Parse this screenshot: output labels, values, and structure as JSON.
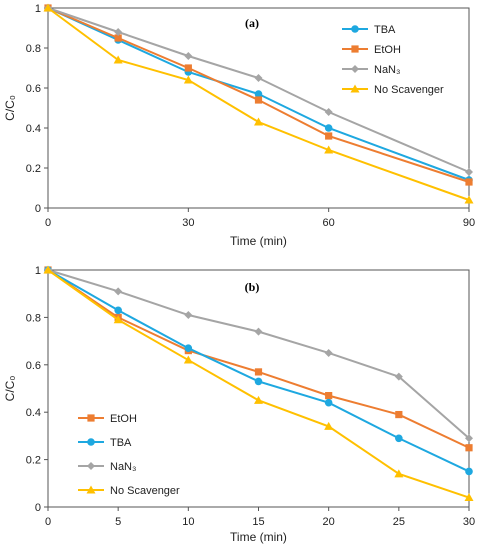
{
  "chart_data": [
    {
      "type": "line",
      "title": "(a)",
      "xlabel": "Time (min)",
      "ylabel": "C/C₀",
      "x": [
        0,
        15,
        30,
        45,
        60,
        90
      ],
      "xticks": [
        0,
        30,
        60,
        90
      ],
      "xlim": [
        0,
        90
      ],
      "yticks": [
        "0",
        "0.2",
        "0.4",
        "0.6",
        "0.8",
        "1"
      ],
      "ylim": [
        0,
        1
      ],
      "legend_position": "top-right",
      "series": [
        {
          "name": "TBA",
          "color": "#1ea8e0",
          "marker": "circle",
          "values": [
            1.0,
            0.84,
            0.68,
            0.57,
            0.4,
            0.14
          ]
        },
        {
          "name": "EtOH",
          "color": "#ed7d31",
          "marker": "square",
          "values": [
            1.0,
            0.85,
            0.7,
            0.54,
            0.36,
            0.13
          ]
        },
        {
          "name": "NaN₃",
          "color": "#a5a5a5",
          "marker": "diamond",
          "values": [
            1.0,
            0.88,
            0.76,
            0.65,
            0.48,
            0.18
          ]
        },
        {
          "name": "No Scavenger",
          "color": "#ffc000",
          "marker": "triangle",
          "values": [
            1.0,
            0.74,
            0.64,
            0.43,
            0.29,
            0.04
          ]
        }
      ]
    },
    {
      "type": "line",
      "title": "(b)",
      "xlabel": "Time (min)",
      "ylabel": "C/C₀",
      "x": [
        0,
        5,
        10,
        15,
        20,
        25,
        30
      ],
      "xticks": [
        0,
        5,
        10,
        15,
        20,
        25,
        30
      ],
      "xlim": [
        0,
        30
      ],
      "yticks": [
        "0",
        "0.2",
        "0.4",
        "0.6",
        "0.8",
        "1"
      ],
      "ylim": [
        0,
        1
      ],
      "legend_position": "bottom-left",
      "series": [
        {
          "name": "EtOH",
          "color": "#ed7d31",
          "marker": "square",
          "values": [
            1.0,
            0.8,
            0.66,
            0.57,
            0.47,
            0.39,
            0.25
          ]
        },
        {
          "name": "TBA",
          "color": "#1ea8e0",
          "marker": "circle",
          "values": [
            1.0,
            0.83,
            0.67,
            0.53,
            0.44,
            0.29,
            0.15
          ]
        },
        {
          "name": "NaN₃",
          "color": "#a5a5a5",
          "marker": "diamond",
          "values": [
            1.0,
            0.91,
            0.81,
            0.74,
            0.65,
            0.55,
            0.29
          ]
        },
        {
          "name": "No Scavenger",
          "color": "#ffc000",
          "marker": "triangle",
          "values": [
            1.0,
            0.79,
            0.62,
            0.45,
            0.34,
            0.14,
            0.04
          ]
        }
      ]
    }
  ]
}
